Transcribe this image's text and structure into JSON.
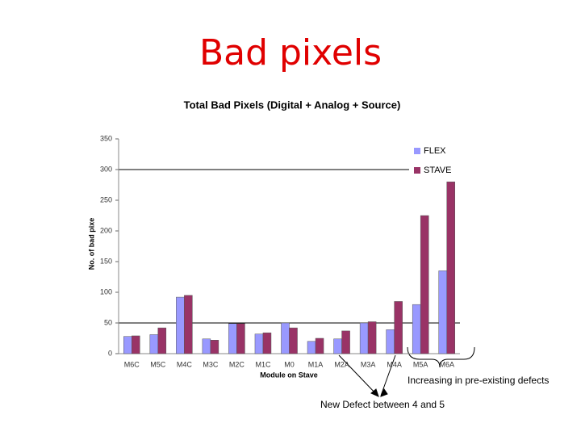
{
  "slide_title": "Bad pixels",
  "chart_data": {
    "type": "bar",
    "title": "Total Bad Pixels (Digital + Analog + Source)",
    "x_label": "Module on Stave",
    "y_label": "No. of bad pixe",
    "categories": [
      "M6C",
      "M5C",
      "M4C",
      "M3C",
      "M2C",
      "M1C",
      "M0",
      "M1A",
      "M2A",
      "M3A",
      "M4A",
      "M5A",
      "M6A"
    ],
    "series": [
      {
        "name": "FLEX",
        "color": "#9999ff",
        "values": [
          28,
          31,
          92,
          24,
          49,
          32,
          50,
          20,
          24,
          50,
          39,
          80,
          135
        ]
      },
      {
        "name": "STAVE",
        "color": "#993366",
        "values": [
          29,
          42,
          95,
          22,
          49,
          34,
          42,
          25,
          37,
          52,
          85,
          225,
          280
        ]
      }
    ],
    "ylim": [
      0,
      350
    ],
    "yticks": [
      0,
      50,
      100,
      150,
      200,
      250,
      300,
      350
    ],
    "grid": [
      50,
      300
    ],
    "legend": "right",
    "annotations": [
      "Increasing in pre-existing defects",
      "New Defect between 4 and 5"
    ]
  }
}
